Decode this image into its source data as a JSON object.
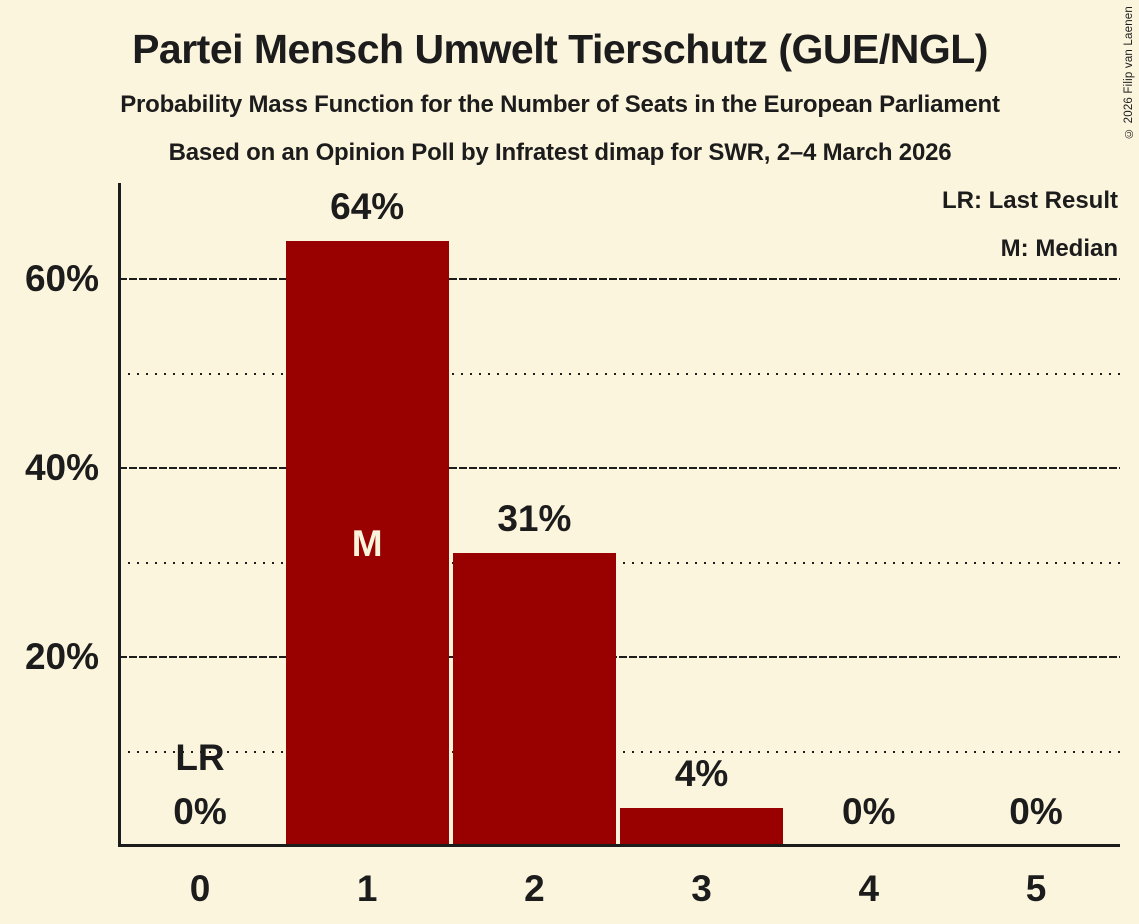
{
  "title": "Partei Mensch Umwelt Tierschutz (GUE/NGL)",
  "subtitle": "Probability Mass Function for the Number of Seats in the European Parliament",
  "source_line": "Based on an Opinion Poll by Infratest dimap for SWR, 2–4 March 2026",
  "copyright": "© 2026 Filip van Laenen",
  "legend": {
    "last_result": "LR: Last Result",
    "median": "M: Median"
  },
  "colors": {
    "background": "#FCF5DE",
    "bar": "#990000",
    "text": "#1C1C1C",
    "median_label": "#FAF3DC"
  },
  "chart_data": {
    "type": "bar",
    "title": "Partei Mensch Umwelt Tierschutz (GUE/NGL)",
    "categories": [
      "0",
      "1",
      "2",
      "3",
      "4",
      "5"
    ],
    "values": [
      0,
      64,
      31,
      4,
      0,
      0
    ],
    "bar_labels": [
      "0%",
      "64%",
      "31%",
      "4%",
      "0%",
      "0%"
    ],
    "y_tick_labels": [
      "20%",
      "40%",
      "60%"
    ],
    "y_major_gridlines": [
      20,
      40,
      60
    ],
    "y_minor_gridlines": [
      10,
      30,
      50
    ],
    "ylim": [
      0,
      70
    ],
    "xlabel": "",
    "ylabel": "",
    "grid": true,
    "legend_position": "top-right",
    "median_category": "1",
    "median_marker": "M",
    "last_result_category": "0",
    "last_result_marker": "LR"
  }
}
